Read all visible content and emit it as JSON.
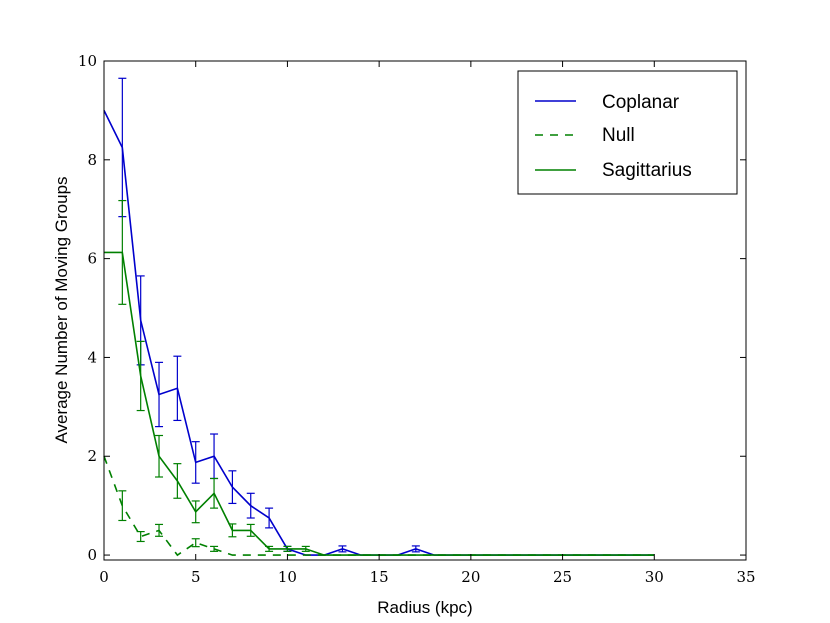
{
  "chart_data": {
    "type": "line",
    "title": "",
    "xlabel": "Radius (kpc)",
    "ylabel": "Average Number of Moving Groups",
    "xlim": [
      0,
      35
    ],
    "ylim": [
      -0.1,
      10
    ],
    "xticks": [
      0,
      5,
      10,
      15,
      20,
      25,
      30,
      35
    ],
    "yticks": [
      0,
      2,
      4,
      6,
      8,
      10
    ],
    "grid": false,
    "legend_position": "top-right",
    "series": [
      {
        "name": "Coplanar",
        "color": "#0000cc",
        "style": "solid",
        "x": [
          0,
          1,
          2,
          3,
          4,
          5,
          6,
          7,
          8,
          9,
          10,
          11,
          12,
          13,
          14,
          15,
          16,
          17,
          18,
          19,
          20,
          21,
          22,
          23,
          24,
          25,
          26,
          27,
          28,
          29,
          30
        ],
        "y": [
          9.0,
          8.25,
          4.75,
          3.25,
          3.375,
          1.875,
          2.0,
          1.375,
          1.0,
          0.75,
          0.125,
          0,
          0,
          0.125,
          0,
          0,
          0,
          0.125,
          0,
          0,
          0,
          0,
          0,
          0,
          0,
          0,
          0,
          0,
          0,
          0,
          0
        ],
        "err": [
          0,
          1.4,
          0.9,
          0.65,
          0.65,
          0.42,
          0.45,
          0.33,
          0.25,
          0.2,
          0.05,
          0,
          0,
          0.06,
          0,
          0,
          0,
          0.06,
          0,
          0,
          0,
          0,
          0,
          0,
          0,
          0,
          0,
          0,
          0,
          0,
          0
        ]
      },
      {
        "name": "Null",
        "color": "#008000",
        "style": "dashed",
        "x": [
          0,
          1,
          2,
          3,
          4,
          5,
          6,
          7,
          8,
          9,
          10,
          11,
          12,
          13,
          14,
          15,
          16,
          17,
          18,
          19,
          20,
          21,
          22,
          23,
          24,
          25,
          26,
          27,
          28,
          29,
          30
        ],
        "y": [
          2.0,
          1.0,
          0.375,
          0.5,
          0,
          0.25,
          0.125,
          0,
          0,
          0,
          0,
          0,
          0,
          0,
          0,
          0,
          0,
          0,
          0,
          0,
          0,
          0,
          0,
          0,
          0,
          0,
          0,
          0,
          0,
          0,
          0
        ],
        "err": [
          0,
          0.3,
          0.1,
          0.12,
          0,
          0.08,
          0.05,
          0,
          0,
          0,
          0,
          0,
          0,
          0,
          0,
          0,
          0,
          0,
          0,
          0,
          0,
          0,
          0,
          0,
          0,
          0,
          0,
          0,
          0,
          0,
          0
        ]
      },
      {
        "name": "Sagittarius",
        "color": "#008000",
        "style": "solid",
        "x": [
          0,
          1,
          2,
          3,
          4,
          5,
          6,
          7,
          8,
          9,
          10,
          11,
          12,
          13,
          14,
          15,
          16,
          17,
          18,
          19,
          20,
          21,
          22,
          23,
          24,
          25,
          26,
          27,
          28,
          29,
          30
        ],
        "y": [
          6.125,
          6.125,
          3.625,
          2.0,
          1.5,
          0.875,
          1.25,
          0.5,
          0.5,
          0.125,
          0.125,
          0.125,
          0,
          0,
          0,
          0,
          0,
          0,
          0,
          0,
          0,
          0,
          0,
          0,
          0,
          0,
          0,
          0,
          0,
          0,
          0
        ],
        "err": [
          0,
          1.05,
          0.7,
          0.42,
          0.35,
          0.22,
          0.3,
          0.13,
          0.12,
          0.05,
          0.05,
          0.05,
          0,
          0,
          0,
          0,
          0,
          0,
          0,
          0,
          0,
          0,
          0,
          0,
          0,
          0,
          0,
          0,
          0,
          0,
          0
        ]
      }
    ]
  }
}
